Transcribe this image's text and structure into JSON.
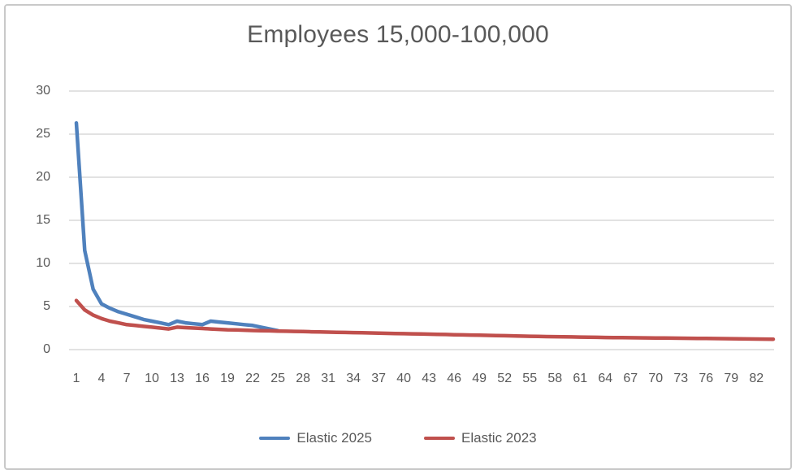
{
  "chart_data": {
    "type": "line",
    "title": "Employees 15,000-100,000",
    "xlabel": "",
    "ylabel": "",
    "ylim": [
      0,
      30
    ],
    "y_ticks": [
      0,
      5,
      10,
      15,
      20,
      25,
      30
    ],
    "x_tick_labels": [
      1,
      4,
      7,
      10,
      13,
      16,
      19,
      22,
      25,
      28,
      31,
      34,
      37,
      40,
      43,
      46,
      49,
      52,
      55,
      58,
      61,
      64,
      67,
      70,
      73,
      76,
      79,
      82
    ],
    "grid": true,
    "legend_position": "bottom",
    "x": [
      1,
      2,
      3,
      4,
      5,
      6,
      7,
      8,
      9,
      10,
      11,
      12,
      13,
      14,
      15,
      16,
      17,
      18,
      19,
      20,
      21,
      22,
      23,
      24,
      25,
      26,
      27,
      28,
      29,
      30,
      31,
      32,
      33,
      34,
      35,
      36,
      37,
      38,
      39,
      40,
      41,
      42,
      43,
      44,
      45,
      46,
      47,
      48,
      49,
      50,
      51,
      52,
      53,
      54,
      55,
      56,
      57,
      58,
      59,
      60,
      61,
      62,
      63,
      64,
      65,
      66,
      67,
      68,
      69,
      70,
      71,
      72,
      73,
      74,
      75,
      76,
      77,
      78,
      79,
      80,
      81,
      82,
      83,
      84
    ],
    "series": [
      {
        "name": "Elastic 2025",
        "color": "#4F81BD",
        "values": [
          26.3,
          11.5,
          7.0,
          5.3,
          4.8,
          4.4,
          4.1,
          3.8,
          3.5,
          3.3,
          3.1,
          2.9,
          3.3,
          3.1,
          3.0,
          2.9,
          3.3,
          3.2,
          3.1,
          3.0,
          2.9,
          2.8,
          2.6,
          2.4,
          2.2
        ]
      },
      {
        "name": "Elastic 2023",
        "color": "#C0504D",
        "values": [
          5.7,
          4.6,
          4.0,
          3.6,
          3.3,
          3.1,
          2.9,
          2.8,
          2.7,
          2.6,
          2.5,
          2.4,
          2.6,
          2.55,
          2.5,
          2.45,
          2.4,
          2.35,
          2.3,
          2.28,
          2.25,
          2.22,
          2.2,
          2.18,
          2.15,
          2.13,
          2.11,
          2.09,
          2.07,
          2.05,
          2.03,
          2.01,
          1.99,
          1.97,
          1.95,
          1.93,
          1.91,
          1.89,
          1.87,
          1.85,
          1.83,
          1.81,
          1.79,
          1.77,
          1.75,
          1.73,
          1.71,
          1.69,
          1.67,
          1.65,
          1.63,
          1.61,
          1.59,
          1.57,
          1.55,
          1.53,
          1.51,
          1.5,
          1.48,
          1.47,
          1.45,
          1.44,
          1.42,
          1.41,
          1.4,
          1.39,
          1.38,
          1.37,
          1.36,
          1.35,
          1.34,
          1.33,
          1.32,
          1.31,
          1.3,
          1.29,
          1.28,
          1.27,
          1.26,
          1.25,
          1.24,
          1.23,
          1.22,
          1.21
        ]
      }
    ],
    "colors": {
      "gridline": "#D9D9D9",
      "text": "#595959",
      "border": "#C9C9C9"
    }
  }
}
